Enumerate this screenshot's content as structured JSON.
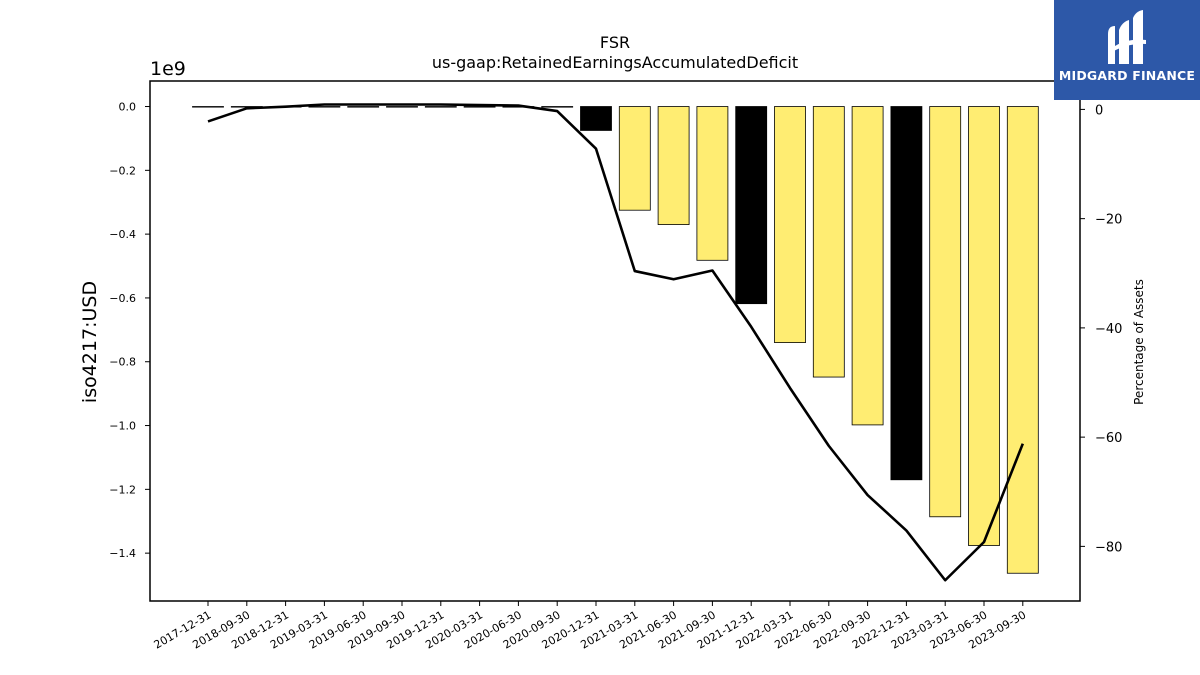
{
  "brand": {
    "name": "MIDGARD FINANCE",
    "colors": {
      "background": "#2d58a8",
      "text": "#ffffff"
    },
    "icon": "midgard-logo-icon"
  },
  "chart_data": {
    "type": "bar",
    "title": "FSR",
    "subtitle": "us-gaap:RetainedEarningsAccumulatedDeficit",
    "ylabel": "iso4217:USD",
    "y_multiplier": "1e9",
    "ylabel_right": "Percentage of Assets",
    "ylim": [
      -1.55,
      0.08
    ],
    "ylim_right": [
      -90,
      5.2
    ],
    "yticks": [
      0.0,
      -0.2,
      -0.4,
      -0.6,
      -0.8,
      -1.0,
      -1.2,
      -1.4
    ],
    "yticks_right": [
      0,
      -20,
      -40,
      -60,
      -80
    ],
    "categories": [
      "2017-12-31",
      "2018-09-30",
      "2018-12-31",
      "2019-03-31",
      "2019-06-30",
      "2019-09-30",
      "2019-12-31",
      "2020-03-31",
      "2020-06-30",
      "2020-09-30",
      "2020-12-31",
      "2021-03-31",
      "2021-06-30",
      "2021-09-30",
      "2021-12-31",
      "2022-03-31",
      "2022-06-30",
      "2022-09-30",
      "2022-12-31",
      "2023-03-31",
      "2023-06-30",
      "2023-09-30"
    ],
    "series": [
      {
        "values": [
          -0.0005,
          -0.001,
          -0.001,
          -0.001,
          -0.002,
          -0.002,
          -0.002,
          -0.002,
          -0.002,
          -0.002,
          -0.075,
          -0.325,
          -0.37,
          -0.482,
          -0.618,
          -0.74,
          -0.848,
          -0.998,
          -1.17,
          -1.286,
          -1.376,
          -1.463
        ]
      },
      {
        "values": [
          -2.2,
          0.2,
          0.5,
          0.9,
          0.9,
          0.9,
          0.9,
          0.8,
          0.7,
          -0.3,
          -7.2,
          -29.6,
          -31.1,
          -29.5,
          -39.8,
          -51.0,
          -61.6,
          -70.6,
          -77.1,
          -86.2,
          -79.2,
          -61.2
        ]
      }
    ],
    "bar_colors": [
      "#ffed72",
      "#ffed72",
      "#ffed72",
      "#ffed72",
      "#ffed72",
      "#ffed72",
      "#ffed72",
      "#ffed72",
      "#ffed72",
      "#ffed72",
      "#000000",
      "#ffed72",
      "#ffed72",
      "#ffed72",
      "#000000",
      "#ffed72",
      "#ffed72",
      "#ffed72",
      "#000000",
      "#ffed72",
      "#ffed72",
      "#ffed72"
    ],
    "line_color": "#000000",
    "grid": false
  }
}
